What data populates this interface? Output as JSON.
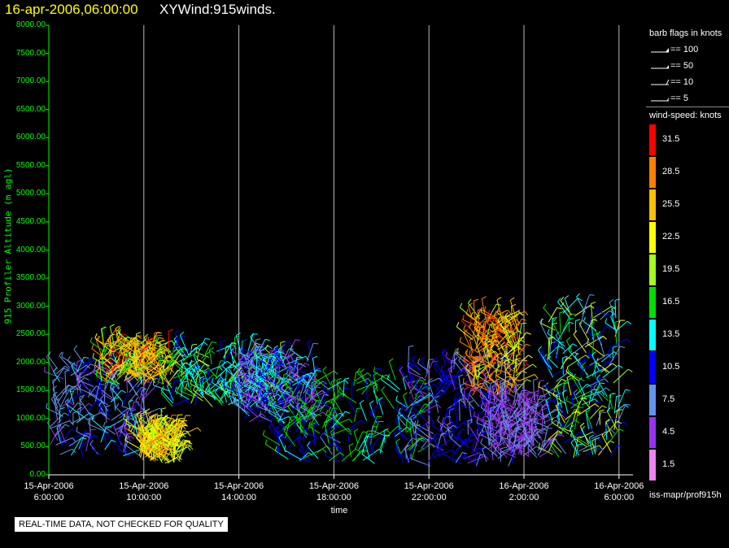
{
  "header": {
    "datetime": "16-apr-2006,06:00:00",
    "plot_name": "XYWind:915winds."
  },
  "barb_legend": {
    "title": "barb flags in knots",
    "items": [
      {
        "label": "== 100"
      },
      {
        "label": "== 50"
      },
      {
        "label": "== 10"
      },
      {
        "label": "== 5"
      }
    ]
  },
  "color_legend": {
    "title": "wind-speed: knots",
    "entries": [
      {
        "label": "31.5",
        "color": "#ff0000"
      },
      {
        "label": "28.5",
        "color": "#ff8000"
      },
      {
        "label": "25.5",
        "color": "#ffbf00"
      },
      {
        "label": "22.5",
        "color": "#ffff00"
      },
      {
        "label": "19.5",
        "color": "#a0ff20"
      },
      {
        "label": "16.5",
        "color": "#00e000"
      },
      {
        "label": "13.5",
        "color": "#00ffff"
      },
      {
        "label": "10.5",
        "color": "#0000ff"
      },
      {
        "label": "7.5",
        "color": "#6495ed"
      },
      {
        "label": "4.5",
        "color": "#9932f0"
      },
      {
        "label": "1.5",
        "color": "#ee82ee"
      }
    ]
  },
  "footer": {
    "source_path": "iss-mapr/prof915h",
    "quality_note": "REAL-TIME DATA, NOT CHECKED FOR QUALITY"
  },
  "chart_data": {
    "type": "scatter",
    "title": "XYWind:915winds.",
    "xlabel": "time",
    "ylabel": "915 Profiler Altitude (m agl)",
    "ylim": [
      0,
      8000
    ],
    "xlim_hours": [
      0,
      24
    ],
    "y_ticks": [
      "0.00",
      "500.00",
      "1000.00",
      "1500.00",
      "2000.00",
      "2500.00",
      "3000.00",
      "3500.00",
      "4000.00",
      "4500.00",
      "5000.00",
      "5500.00",
      "6000.00",
      "6500.00",
      "7000.00",
      "7500.00",
      "8000.00"
    ],
    "x_ticks": [
      {
        "date": "15-Apr-2006",
        "time": "6:00:00"
      },
      {
        "date": "15-Apr-2006",
        "time": "10:00:00"
      },
      {
        "date": "15-Apr-2006",
        "time": "14:00:00"
      },
      {
        "date": "15-Apr-2006",
        "time": "18:00:00"
      },
      {
        "date": "15-Apr-2006",
        "time": "22:00:00"
      },
      {
        "date": "16-Apr-2006",
        "time": "2:00:00"
      },
      {
        "date": "16-Apr-2006",
        "time": "6:00:00"
      }
    ],
    "grid": "vertical lines at each time tick",
    "clusters": [
      {
        "t": [
          0.0,
          4.2
        ],
        "alt": [
          300,
          2000
        ],
        "speed": [
          4,
          14
        ],
        "color": "#6495ed"
      },
      {
        "t": [
          2.2,
          5.2
        ],
        "alt": [
          1600,
          2300
        ],
        "speed": [
          16,
          31
        ],
        "color": "#ffbf00"
      },
      {
        "t": [
          3.8,
          5.5
        ],
        "alt": [
          200,
          800
        ],
        "speed": [
          18,
          28
        ],
        "color": "#ffff00"
      },
      {
        "t": [
          5.0,
          9.8
        ],
        "alt": [
          1200,
          2200
        ],
        "speed": [
          10,
          22
        ],
        "color": "#00ffff"
      },
      {
        "t": [
          8.0,
          11.2
        ],
        "alt": [
          900,
          2100
        ],
        "speed": [
          5,
          14
        ],
        "color": "#9932f0"
      },
      {
        "t": [
          9.5,
          15.6
        ],
        "alt": [
          200,
          1700
        ],
        "speed": [
          8,
          18
        ],
        "color": "#00e000"
      },
      {
        "t": [
          15.0,
          19.5
        ],
        "alt": [
          150,
          2000
        ],
        "speed": [
          4,
          11
        ],
        "color": "#0000ff"
      },
      {
        "t": [
          17.8,
          19.8
        ],
        "alt": [
          1400,
          2800
        ],
        "speed": [
          18,
          31
        ],
        "color": "#ff8000"
      },
      {
        "t": [
          18.5,
          21.0
        ],
        "alt": [
          300,
          1400
        ],
        "speed": [
          3,
          9
        ],
        "color": "#9932f0"
      },
      {
        "t": [
          21.0,
          24.0
        ],
        "alt": [
          300,
          2900
        ],
        "speed": [
          6,
          24
        ],
        "color": "#00ffff"
      }
    ]
  }
}
